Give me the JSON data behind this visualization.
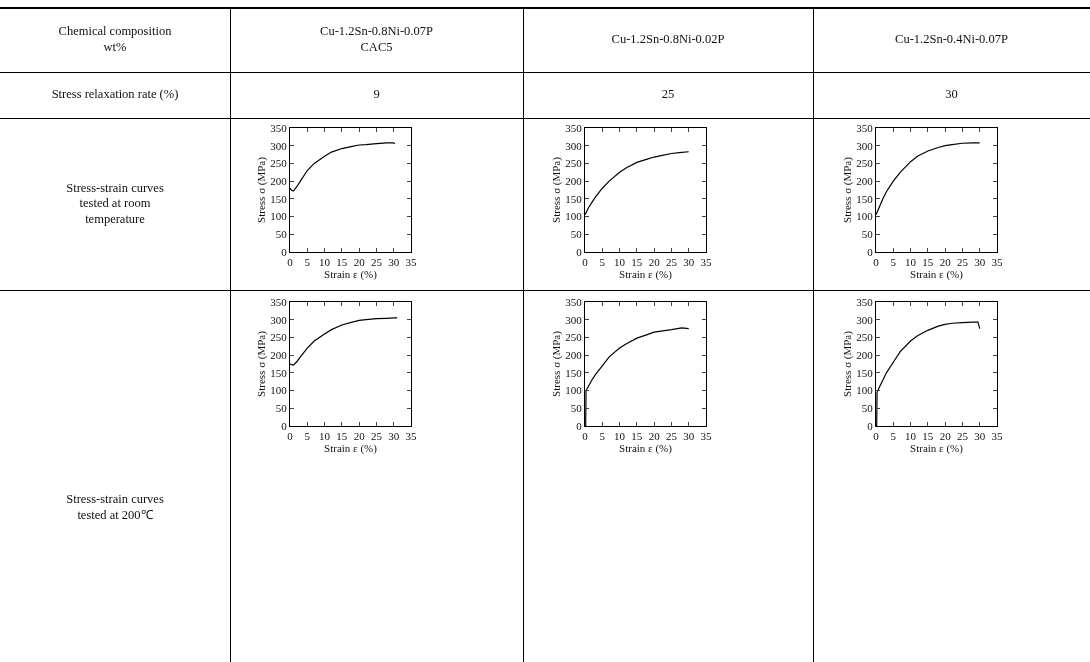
{
  "chart_data": [
    {
      "type": "other",
      "annotations": [
        "Chemical composition\nwt%",
        "Cu-1.2Sn-0.8Ni-0.07P\nCAC5",
        "Cu-1.2Sn-0.8Ni-0.02P",
        "Cu-1.2Sn-0.4Ni-0.07P",
        "Stress relaxation rate (%)",
        "9",
        "25",
        "30",
        "Stress-strain curves\ntested at room\ntemperature",
        "Stress-strain curves\ntested at 200℃"
      ]
    },
    {
      "type": "line",
      "color": "#000000",
      "x": [
        0,
        0.5,
        1,
        2,
        3,
        5,
        7,
        10,
        12,
        15,
        18,
        20,
        22,
        25,
        28,
        30,
        30.3
      ],
      "values": [
        180,
        174,
        172,
        185,
        200,
        230,
        250,
        270,
        282,
        292,
        298,
        302,
        303,
        306,
        308,
        308,
        305
      ],
      "xlim": [
        0,
        35
      ],
      "ylim": [
        0,
        350
      ],
      "xticks": [
        0,
        5,
        10,
        15,
        20,
        25,
        30,
        35
      ],
      "yticks": [
        0,
        50,
        100,
        150,
        200,
        250,
        300,
        350
      ],
      "xlabel": "Strain ε (%)",
      "ylabel": "Stress σ (MPa)"
    },
    {
      "type": "line",
      "color": "#000000",
      "x": [
        0,
        1,
        2,
        3,
        5,
        7,
        10,
        12,
        15,
        18,
        20,
        22,
        25,
        28,
        30
      ],
      "values": [
        105,
        125,
        140,
        155,
        180,
        200,
        225,
        238,
        253,
        262,
        268,
        272,
        278,
        281,
        283
      ],
      "xlim": [
        0,
        35
      ],
      "ylim": [
        0,
        350
      ],
      "xticks": [
        0,
        5,
        10,
        15,
        20,
        25,
        30,
        35
      ],
      "yticks": [
        0,
        50,
        100,
        150,
        200,
        250,
        300,
        350
      ],
      "xlabel": "Strain ε (%)",
      "ylabel": "Stress σ (MPa)"
    },
    {
      "type": "line",
      "color": "#000000",
      "x": [
        0,
        1,
        2,
        3,
        5,
        7,
        10,
        12,
        15,
        18,
        20,
        22,
        25,
        28,
        30
      ],
      "values": [
        105,
        128,
        150,
        170,
        200,
        225,
        255,
        270,
        285,
        295,
        300,
        303,
        307,
        308,
        308
      ],
      "xlim": [
        0,
        35
      ],
      "ylim": [
        0,
        350
      ],
      "xticks": [
        0,
        5,
        10,
        15,
        20,
        25,
        30,
        35
      ],
      "yticks": [
        0,
        50,
        100,
        150,
        200,
        250,
        300,
        350
      ],
      "xlabel": "Strain ε (%)",
      "ylabel": "Stress σ (MPa)"
    },
    {
      "type": "line",
      "color": "#000000",
      "x": [
        0,
        0.5,
        1,
        2,
        3,
        5,
        7,
        10,
        12,
        15,
        18,
        20,
        22,
        25,
        28,
        30,
        31
      ],
      "values": [
        175,
        173,
        172,
        182,
        195,
        220,
        240,
        260,
        272,
        285,
        293,
        298,
        300,
        303,
        304,
        305,
        305
      ],
      "xlim": [
        0,
        35
      ],
      "ylim": [
        0,
        350
      ],
      "xticks": [
        0,
        5,
        10,
        15,
        20,
        25,
        30,
        35
      ],
      "yticks": [
        0,
        50,
        100,
        150,
        200,
        250,
        300,
        350
      ],
      "xlabel": "Strain ε (%)",
      "ylabel": "Stress σ (MPa)"
    },
    {
      "type": "line",
      "color": "#000000",
      "x": [
        0.2,
        0.3,
        1,
        2,
        3,
        5,
        7,
        10,
        12,
        15,
        18,
        20,
        22,
        25,
        28,
        30
      ],
      "values": [
        0,
        100,
        112,
        130,
        145,
        170,
        195,
        220,
        232,
        248,
        258,
        265,
        268,
        272,
        277,
        275
      ],
      "xlim": [
        0,
        35
      ],
      "ylim": [
        0,
        350
      ],
      "xticks": [
        0,
        5,
        10,
        15,
        20,
        25,
        30,
        35
      ],
      "yticks": [
        0,
        50,
        100,
        150,
        200,
        250,
        300,
        350
      ],
      "xlabel": "Strain ε (%)",
      "ylabel": "Stress σ (MPa)"
    },
    {
      "type": "line",
      "color": "#000000",
      "x": [
        0.2,
        0.3,
        1,
        2,
        3,
        5,
        7,
        10,
        12,
        15,
        18,
        20,
        22,
        25,
        28,
        29.5,
        30
      ],
      "values": [
        0,
        95,
        110,
        130,
        150,
        180,
        210,
        240,
        255,
        270,
        282,
        287,
        290,
        292,
        293,
        293,
        275
      ],
      "xlim": [
        0,
        35
      ],
      "ylim": [
        0,
        350
      ],
      "xticks": [
        0,
        5,
        10,
        15,
        20,
        25,
        30,
        35
      ],
      "yticks": [
        0,
        50,
        100,
        150,
        200,
        250,
        300,
        350
      ],
      "xlabel": "Strain ε (%)",
      "ylabel": "Stress σ (MPa)"
    }
  ]
}
